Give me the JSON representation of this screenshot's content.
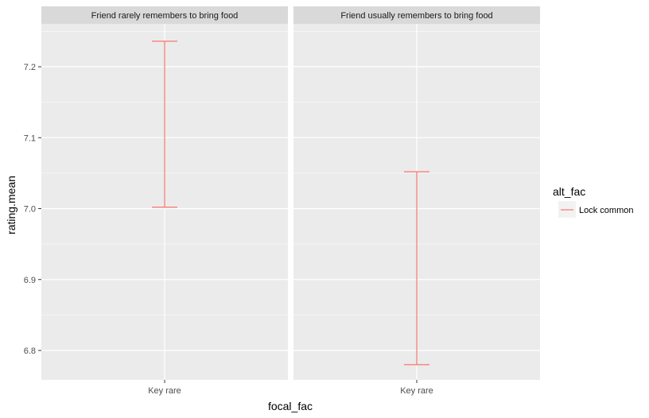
{
  "chart_data": {
    "type": "errorbar",
    "facets": [
      {
        "label": "Friend rarely remembers to bring food",
        "categories": [
          "Key rare"
        ],
        "series": [
          {
            "name": "Lock common",
            "category": "Key rare",
            "ymin": 7.002,
            "ymax": 7.236
          }
        ]
      },
      {
        "label": "Friend usually remembers to bring food",
        "categories": [
          "Key rare"
        ],
        "series": [
          {
            "name": "Lock common",
            "category": "Key rare",
            "ymin": 6.78,
            "ymax": 7.052
          }
        ]
      }
    ],
    "xlabel": "focal_fac",
    "ylabel": "rating.mean",
    "ylim": [
      6.76,
      7.25
    ],
    "yticks": [
      6.8,
      6.9,
      7.0,
      7.1,
      7.2
    ],
    "ytick_labels": [
      "6.8",
      "6.9",
      "7.0",
      "7.1",
      "7.2"
    ],
    "grid": true,
    "legend": {
      "title": "alt_fac",
      "position": "right",
      "entries": [
        {
          "label": "Lock common",
          "color": "#f8766d"
        }
      ]
    },
    "colors": {
      "panel_bg": "#ebebeb",
      "strip_bg": "#d9d9d9",
      "grid": "#ffffff",
      "series": "#f8766d"
    }
  }
}
